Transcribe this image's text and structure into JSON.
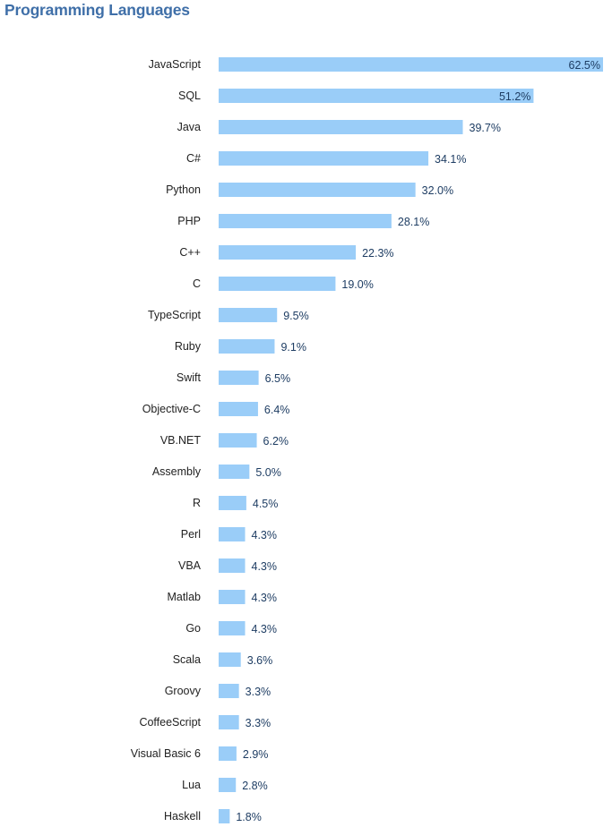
{
  "chart_data": {
    "type": "bar",
    "orientation": "horizontal",
    "title": "Programming Languages",
    "xlabel": "",
    "ylabel": "",
    "xlim": [
      0,
      62.5
    ],
    "grid": false,
    "value_suffix": "%",
    "bar_color": "#9acdf8",
    "categories": [
      "JavaScript",
      "SQL",
      "Java",
      "C#",
      "Python",
      "PHP",
      "C++",
      "C",
      "TypeScript",
      "Ruby",
      "Swift",
      "Objective-C",
      "VB.NET",
      "Assembly",
      "R",
      "Perl",
      "VBA",
      "Matlab",
      "Go",
      "Scala",
      "Groovy",
      "CoffeeScript",
      "Visual Basic 6",
      "Lua",
      "Haskell"
    ],
    "values": [
      62.5,
      51.2,
      39.7,
      34.1,
      32.0,
      28.1,
      22.3,
      19.0,
      9.5,
      9.1,
      6.5,
      6.4,
      6.2,
      5.0,
      4.5,
      4.3,
      4.3,
      4.3,
      4.3,
      3.6,
      3.3,
      3.3,
      2.9,
      2.8,
      1.8
    ],
    "labels": [
      "62.5%",
      "51.2%",
      "39.7%",
      "34.1%",
      "32.0%",
      "28.1%",
      "22.3%",
      "19.0%",
      "9.5%",
      "9.1%",
      "6.5%",
      "6.4%",
      "6.2%",
      "5.0%",
      "4.5%",
      "4.3%",
      "4.3%",
      "4.3%",
      "4.3%",
      "3.6%",
      "3.3%",
      "3.3%",
      "2.9%",
      "2.8%",
      "1.8%"
    ]
  }
}
